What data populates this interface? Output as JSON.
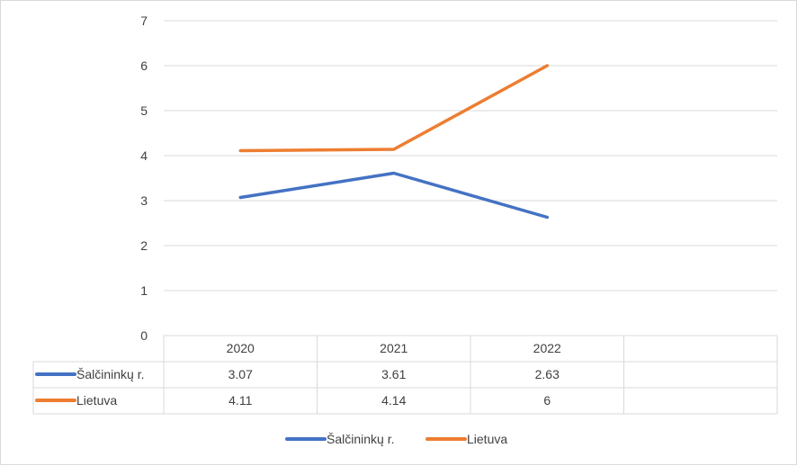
{
  "chart_data": {
    "type": "line",
    "categories": [
      "2020",
      "2021",
      "2022"
    ],
    "series": [
      {
        "name": "Šalčininkų r.",
        "values": [
          3.07,
          3.61,
          2.63
        ],
        "color": "#4472c4"
      },
      {
        "name": "Lietuva",
        "values": [
          4.11,
          4.14,
          6
        ],
        "color": "#ed7d31"
      }
    ],
    "ylim": [
      0,
      7
    ],
    "yticks": [
      0,
      1,
      2,
      3,
      4,
      5,
      6,
      7
    ],
    "grid": true,
    "data_table": {
      "rows": [
        {
          "label": "Šalčininkų r.",
          "cells": [
            "3.07",
            "3.61",
            "2.63"
          ]
        },
        {
          "label": "Lietuva",
          "cells": [
            "4.11",
            "4.14",
            "6"
          ]
        }
      ]
    },
    "legend": {
      "position": "bottom",
      "entries": [
        "Šalčininkų r.",
        "Lietuva"
      ]
    },
    "title": "",
    "xlabel": "",
    "ylabel": ""
  }
}
